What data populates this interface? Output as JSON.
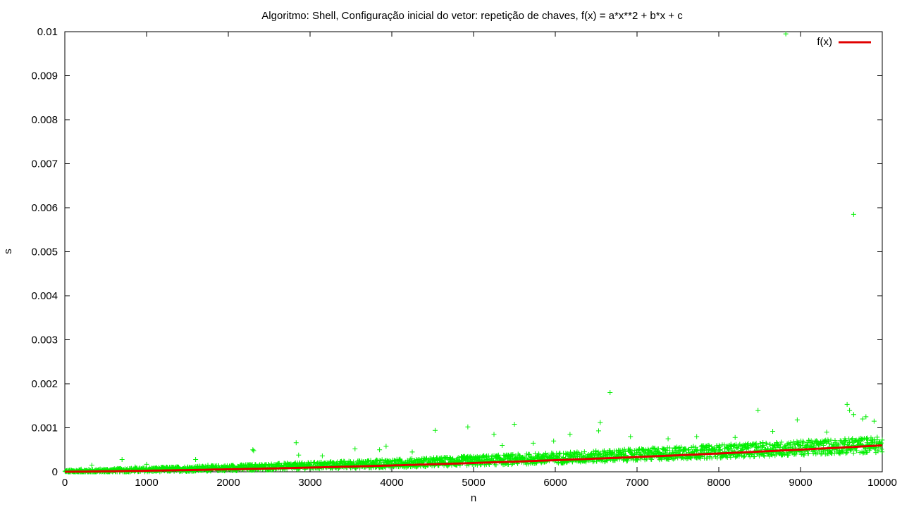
{
  "chart_data": {
    "type": "scatter",
    "title": "Algoritmo: Shell, Configuração inicial do vetor: repetição de chaves, f(x) = a*x**2 + b*x + c",
    "xlabel": "n",
    "ylabel": "s",
    "xlim": [
      0,
      10000
    ],
    "ylim": [
      0,
      0.01
    ],
    "xticks": [
      "0",
      "1000",
      "2000",
      "3000",
      "4000",
      "5000",
      "6000",
      "7000",
      "8000",
      "9000",
      "10000"
    ],
    "yticks": [
      "0",
      "0.001",
      "0.002",
      "0.003",
      "0.004",
      "0.005",
      "0.006",
      "0.007",
      "0.008",
      "0.009",
      "0.01"
    ],
    "grid": false,
    "legend_position": "top-right",
    "colors": {
      "points": "#00ee00",
      "fit": "#e00000",
      "axes": "#000000"
    },
    "series": [
      {
        "kind": "points",
        "marker": "+",
        "band_trend": [
          [
            0,
            0.0
          ],
          [
            2000,
            8e-05
          ],
          [
            4000,
            0.00018
          ],
          [
            6000,
            0.0003
          ],
          [
            8000,
            0.00045
          ],
          [
            10000,
            0.0006
          ]
        ],
        "outliers": [
          [
            200,
            6e-05
          ],
          [
            330,
            0.00015
          ],
          [
            700,
            0.00028
          ],
          [
            860,
            0.00011
          ],
          [
            1000,
            0.00017
          ],
          [
            1600,
            0.00028
          ],
          [
            1750,
            0.00015
          ],
          [
            2300,
            0.0005
          ],
          [
            2310,
            0.00048
          ],
          [
            2830,
            0.00066
          ],
          [
            2860,
            0.00038
          ],
          [
            3150,
            0.00036
          ],
          [
            3550,
            0.00052
          ],
          [
            3850,
            0.0005
          ],
          [
            3930,
            0.00058
          ],
          [
            4250,
            0.00045
          ],
          [
            4530,
            0.00094
          ],
          [
            4930,
            0.00102
          ],
          [
            5250,
            0.00085
          ],
          [
            5500,
            0.00108
          ],
          [
            5350,
            0.0006
          ],
          [
            5730,
            0.00065
          ],
          [
            5980,
            0.0007
          ],
          [
            6180,
            0.00085
          ],
          [
            6550,
            0.00112
          ],
          [
            6530,
            0.00093
          ],
          [
            6670,
            0.0018
          ],
          [
            6920,
            0.0008
          ],
          [
            7380,
            0.00075
          ],
          [
            7730,
            0.0008
          ],
          [
            8200,
            0.00078
          ],
          [
            8480,
            0.0014
          ],
          [
            8660,
            0.00092
          ],
          [
            8960,
            0.00118
          ],
          [
            9320,
            0.0009
          ],
          [
            9570,
            0.00153
          ],
          [
            9600,
            0.0014
          ],
          [
            9650,
            0.0013
          ],
          [
            9760,
            0.0012
          ],
          [
            9800,
            0.00125
          ],
          [
            9900,
            0.00115
          ],
          [
            9650,
            0.00585
          ],
          [
            8820,
            0.00995
          ]
        ]
      },
      {
        "name": "f(x)",
        "kind": "line",
        "coefficients": {
          "a": 4e-12,
          "b": 2e-08,
          "c": 0
        }
      }
    ]
  }
}
